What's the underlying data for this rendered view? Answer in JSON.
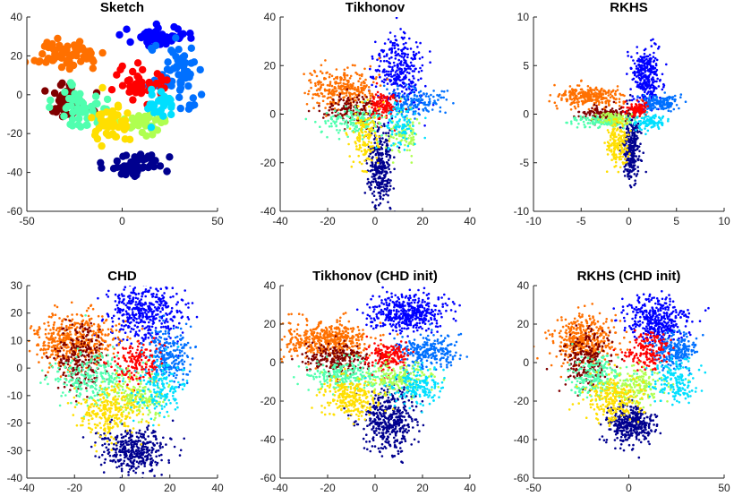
{
  "figure": {
    "palette": [
      "#00008f",
      "#0000ff",
      "#0070ff",
      "#00dfff",
      "#50ffaf",
      "#afff50",
      "#ffdf00",
      "#ff7000",
      "#ff0000",
      "#800000"
    ]
  },
  "chart_data": [
    {
      "type": "scatter",
      "title": "Sketch",
      "xlim": [
        -50,
        50
      ],
      "ylim": [
        -60,
        40
      ],
      "xticks": [
        -50,
        0,
        50
      ],
      "yticks": [
        -60,
        -40,
        -20,
        0,
        20,
        40
      ],
      "marker": "large",
      "clusters": [
        {
          "color": "#0000ff",
          "cx": 18,
          "cy": 30,
          "sx": 8,
          "sy": 2.5,
          "n": 60
        },
        {
          "color": "#0070ff",
          "cx": 30,
          "cy": 10,
          "sx": 6,
          "sy": 8,
          "n": 60
        },
        {
          "color": "#00008f",
          "cx": 8,
          "cy": -36,
          "sx": 7,
          "sy": 3,
          "n": 55
        },
        {
          "color": "#ff7000",
          "cx": -30,
          "cy": 20,
          "sx": 9,
          "sy": 3.5,
          "n": 60
        },
        {
          "color": "#800000",
          "cx": -28,
          "cy": -2,
          "sx": 6,
          "sy": 5,
          "n": 45
        },
        {
          "color": "#50ffaf",
          "cx": -22,
          "cy": -8,
          "sx": 7,
          "sy": 6,
          "n": 50
        },
        {
          "color": "#ff0000",
          "cx": 10,
          "cy": 5,
          "sx": 6,
          "sy": 5,
          "n": 40
        },
        {
          "color": "#afff50",
          "cx": 12,
          "cy": -14,
          "sx": 7,
          "sy": 3,
          "n": 45
        },
        {
          "color": "#ffdf00",
          "cx": -6,
          "cy": -16,
          "sx": 6,
          "sy": 6,
          "n": 45
        },
        {
          "color": "#00dfff",
          "cx": 20,
          "cy": -5,
          "sx": 5,
          "sy": 5,
          "n": 25
        }
      ]
    },
    {
      "type": "scatter",
      "title": "Tikhonov",
      "xlim": [
        -40,
        40
      ],
      "ylim": [
        -40,
        40
      ],
      "xticks": [
        -40,
        -20,
        0,
        20,
        40
      ],
      "yticks": [
        -40,
        -20,
        0,
        20,
        40
      ],
      "marker": "small",
      "clusters": [
        {
          "color": "#0000ff",
          "cx": 10,
          "cy": 18,
          "sx": 5,
          "sy": 7,
          "n": 320
        },
        {
          "color": "#0070ff",
          "cx": 16,
          "cy": 5,
          "sx": 6,
          "sy": 3,
          "n": 180
        },
        {
          "color": "#00008f",
          "cx": 2,
          "cy": -22,
          "sx": 2.5,
          "sy": 8,
          "n": 320
        },
        {
          "color": "#ff7000",
          "cx": -14,
          "cy": 10,
          "sx": 7,
          "sy": 4,
          "n": 300
        },
        {
          "color": "#800000",
          "cx": -10,
          "cy": 2,
          "sx": 6,
          "sy": 3,
          "n": 160
        },
        {
          "color": "#50ffaf",
          "cx": -8,
          "cy": -3,
          "sx": 7,
          "sy": 3,
          "n": 160
        },
        {
          "color": "#ff0000",
          "cx": 4,
          "cy": 4,
          "sx": 3,
          "sy": 3,
          "n": 110
        },
        {
          "color": "#afff50",
          "cx": 12,
          "cy": -8,
          "sx": 4,
          "sy": 4,
          "n": 100
        },
        {
          "color": "#ffdf00",
          "cx": -4,
          "cy": -10,
          "sx": 3,
          "sy": 6,
          "n": 150
        },
        {
          "color": "#00dfff",
          "cx": 10,
          "cy": -4,
          "sx": 4,
          "sy": 4,
          "n": 90
        }
      ]
    },
    {
      "type": "scatter",
      "title": "RKHS",
      "xlim": [
        -10,
        10
      ],
      "ylim": [
        -10,
        10
      ],
      "xticks": [
        -10,
        -5,
        0,
        5,
        10
      ],
      "yticks": [
        -10,
        -5,
        0,
        5,
        10
      ],
      "marker": "small",
      "clusters": [
        {
          "color": "#0000ff",
          "cx": 1.8,
          "cy": 4.0,
          "sx": 0.7,
          "sy": 1.4,
          "n": 320
        },
        {
          "color": "#0070ff",
          "cx": 3.2,
          "cy": 1.2,
          "sx": 1.0,
          "sy": 0.4,
          "n": 160
        },
        {
          "color": "#00008f",
          "cx": 0.3,
          "cy": -3.5,
          "sx": 0.5,
          "sy": 1.8,
          "n": 300
        },
        {
          "color": "#ff7000",
          "cx": -4.0,
          "cy": 1.8,
          "sx": 1.6,
          "sy": 0.5,
          "n": 300
        },
        {
          "color": "#800000",
          "cx": -2.5,
          "cy": 0,
          "sx": 1.2,
          "sy": 0.4,
          "n": 160
        },
        {
          "color": "#50ffaf",
          "cx": -2.8,
          "cy": -0.8,
          "sx": 1.5,
          "sy": 0.3,
          "n": 140
        },
        {
          "color": "#ff0000",
          "cx": 0.8,
          "cy": 0.5,
          "sx": 0.5,
          "sy": 0.4,
          "n": 90
        },
        {
          "color": "#afff50",
          "cx": -1.5,
          "cy": -0.4,
          "sx": 0.8,
          "sy": 0.3,
          "n": 80
        },
        {
          "color": "#ffdf00",
          "cx": -1.2,
          "cy": -2.8,
          "sx": 0.6,
          "sy": 1.2,
          "n": 160
        },
        {
          "color": "#00dfff",
          "cx": 2.2,
          "cy": -0.8,
          "sx": 0.8,
          "sy": 0.4,
          "n": 100
        }
      ]
    },
    {
      "type": "scatter",
      "title": "CHD",
      "xlim": [
        -40,
        40
      ],
      "ylim": [
        -40,
        30
      ],
      "xticks": [
        -40,
        -20,
        0,
        20,
        40
      ],
      "yticks": [
        -40,
        -30,
        -20,
        -10,
        0,
        10,
        20,
        30
      ],
      "marker": "small",
      "clusters": [
        {
          "color": "#0000ff",
          "cx": 10,
          "cy": 20,
          "sx": 8,
          "sy": 5,
          "n": 420
        },
        {
          "color": "#0070ff",
          "cx": 20,
          "cy": 5,
          "sx": 5,
          "sy": 5,
          "n": 240
        },
        {
          "color": "#00008f",
          "cx": 5,
          "cy": -30,
          "sx": 7,
          "sy": 4,
          "n": 380
        },
        {
          "color": "#ff7000",
          "cx": -20,
          "cy": 10,
          "sx": 9,
          "sy": 5,
          "n": 460
        },
        {
          "color": "#800000",
          "cx": -18,
          "cy": 4,
          "sx": 5,
          "sy": 6,
          "n": 240
        },
        {
          "color": "#50ffaf",
          "cx": -12,
          "cy": -4,
          "sx": 8,
          "sy": 5,
          "n": 260
        },
        {
          "color": "#ff0000",
          "cx": 6,
          "cy": 2,
          "sx": 5,
          "sy": 4,
          "n": 160
        },
        {
          "color": "#afff50",
          "cx": 8,
          "cy": -10,
          "sx": 6,
          "sy": 4,
          "n": 180
        },
        {
          "color": "#ffdf00",
          "cx": -5,
          "cy": -16,
          "sx": 7,
          "sy": 5,
          "n": 280
        },
        {
          "color": "#00dfff",
          "cx": 16,
          "cy": -8,
          "sx": 5,
          "sy": 5,
          "n": 170
        }
      ]
    },
    {
      "type": "scatter",
      "title": "Tikhonov (CHD init)",
      "xlim": [
        -40,
        40
      ],
      "ylim": [
        -60,
        40
      ],
      "xticks": [
        -40,
        -20,
        0,
        20,
        40
      ],
      "yticks": [
        -60,
        -40,
        -20,
        0,
        20,
        40
      ],
      "marker": "small",
      "clusters": [
        {
          "color": "#0000ff",
          "cx": 14,
          "cy": 26,
          "sx": 8,
          "sy": 5,
          "n": 420
        },
        {
          "color": "#0070ff",
          "cx": 22,
          "cy": 6,
          "sx": 6,
          "sy": 4,
          "n": 240
        },
        {
          "color": "#00008f",
          "cx": 6,
          "cy": -30,
          "sx": 6,
          "sy": 8,
          "n": 420
        },
        {
          "color": "#ff7000",
          "cx": -20,
          "cy": 12,
          "sx": 9,
          "sy": 5,
          "n": 460
        },
        {
          "color": "#800000",
          "cx": -16,
          "cy": 2,
          "sx": 7,
          "sy": 4,
          "n": 240
        },
        {
          "color": "#50ffaf",
          "cx": -12,
          "cy": -6,
          "sx": 8,
          "sy": 4,
          "n": 240
        },
        {
          "color": "#ff0000",
          "cx": 6,
          "cy": 4,
          "sx": 4,
          "sy": 4,
          "n": 160
        },
        {
          "color": "#afff50",
          "cx": 10,
          "cy": -8,
          "sx": 7,
          "sy": 4,
          "n": 180
        },
        {
          "color": "#ffdf00",
          "cx": -10,
          "cy": -18,
          "sx": 6,
          "sy": 5,
          "n": 260
        },
        {
          "color": "#00dfff",
          "cx": 18,
          "cy": -12,
          "sx": 5,
          "sy": 5,
          "n": 170
        }
      ]
    },
    {
      "type": "scatter",
      "title": "RKHS (CHD init)",
      "xlim": [
        -50,
        50
      ],
      "ylim": [
        -60,
        40
      ],
      "xticks": [
        -50,
        0,
        50
      ],
      "yticks": [
        -60,
        -40,
        -20,
        0,
        20,
        40
      ],
      "marker": "small",
      "clusters": [
        {
          "color": "#0000ff",
          "cx": 14,
          "cy": 22,
          "sx": 8,
          "sy": 6,
          "n": 380
        },
        {
          "color": "#0070ff",
          "cx": 24,
          "cy": 6,
          "sx": 6,
          "sy": 5,
          "n": 220
        },
        {
          "color": "#00008f",
          "cx": 2,
          "cy": -32,
          "sx": 6,
          "sy": 5,
          "n": 360
        },
        {
          "color": "#ff7000",
          "cx": -24,
          "cy": 12,
          "sx": 8,
          "sy": 6,
          "n": 380
        },
        {
          "color": "#800000",
          "cx": -22,
          "cy": 0,
          "sx": 6,
          "sy": 7,
          "n": 220
        },
        {
          "color": "#50ffaf",
          "cx": -16,
          "cy": -8,
          "sx": 7,
          "sy": 6,
          "n": 220
        },
        {
          "color": "#ff0000",
          "cx": 10,
          "cy": 6,
          "sx": 6,
          "sy": 5,
          "n": 160
        },
        {
          "color": "#afff50",
          "cx": 4,
          "cy": -12,
          "sx": 8,
          "sy": 5,
          "n": 180
        },
        {
          "color": "#ffdf00",
          "cx": -8,
          "cy": -20,
          "sx": 8,
          "sy": 6,
          "n": 240
        },
        {
          "color": "#00dfff",
          "cx": 24,
          "cy": -10,
          "sx": 6,
          "sy": 6,
          "n": 160
        }
      ]
    }
  ]
}
